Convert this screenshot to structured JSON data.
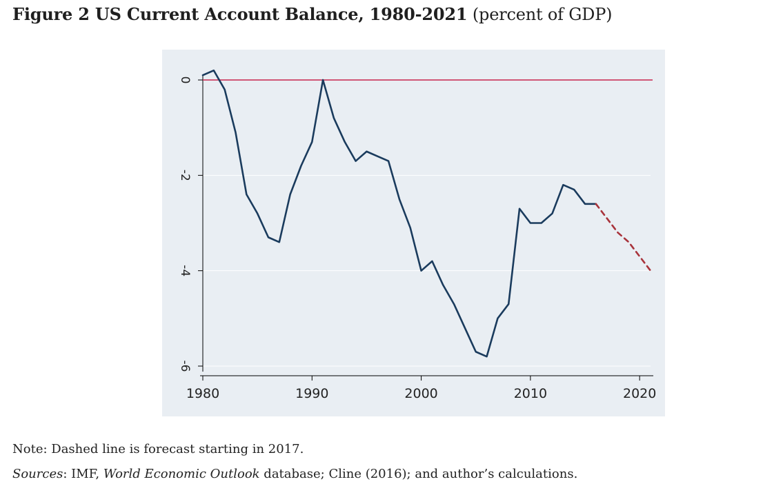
{
  "figure": {
    "label": "Figure 2 US Current Account Balance, 1980-2021",
    "unit": "(percent of GDP)"
  },
  "note": "Note: Dashed line is forecast starting in 2017.",
  "sources": {
    "label": "Sources",
    "sep": ": IMF, ",
    "publication": "World Economic Outlook",
    "rest": " database; Cline (2016); and author’s calculations."
  },
  "colors": {
    "plot_background": "#e9eef3",
    "series": "#1a3b5d",
    "forecast": "#a8333b",
    "reference": "#c8234d",
    "grid": "#ffffff"
  },
  "chart_data": {
    "type": "line",
    "xlim": [
      1980,
      2021
    ],
    "ylim": [
      -6,
      0
    ],
    "x_ticks": [
      1980,
      1990,
      2000,
      2010,
      2020
    ],
    "y_ticks": [
      0,
      -2,
      -4,
      -6
    ],
    "grid": true,
    "reference_line": 0,
    "series": [
      {
        "style": "solid",
        "x": [
          1980,
          1981,
          1982,
          1983,
          1984,
          1985,
          1986,
          1987,
          1988,
          1989,
          1990,
          1991,
          1992,
          1993,
          1994,
          1995,
          1996,
          1997,
          1998,
          1999,
          2000,
          2001,
          2002,
          2003,
          2004,
          2005,
          2006,
          2007,
          2008,
          2009,
          2010,
          2011,
          2012,
          2013,
          2014,
          2015,
          2016
        ],
        "values": [
          0.1,
          0.2,
          -0.2,
          -1.1,
          -2.4,
          -2.8,
          -3.3,
          -3.4,
          -2.4,
          -1.8,
          -1.3,
          0.0,
          -0.8,
          -1.3,
          -1.7,
          -1.5,
          -1.6,
          -1.7,
          -2.5,
          -3.1,
          -4.0,
          -3.8,
          -4.3,
          -4.7,
          -5.2,
          -5.7,
          -5.8,
          -5.0,
          -4.7,
          -2.7,
          -3.0,
          -3.0,
          -2.8,
          -2.2,
          -2.3,
          -2.6,
          -2.6
        ]
      },
      {
        "style": "dashed",
        "x": [
          2016,
          2017,
          2018,
          2019,
          2020,
          2021
        ],
        "values": [
          -2.6,
          -2.9,
          -3.2,
          -3.4,
          -3.7,
          -4.0
        ]
      }
    ]
  }
}
